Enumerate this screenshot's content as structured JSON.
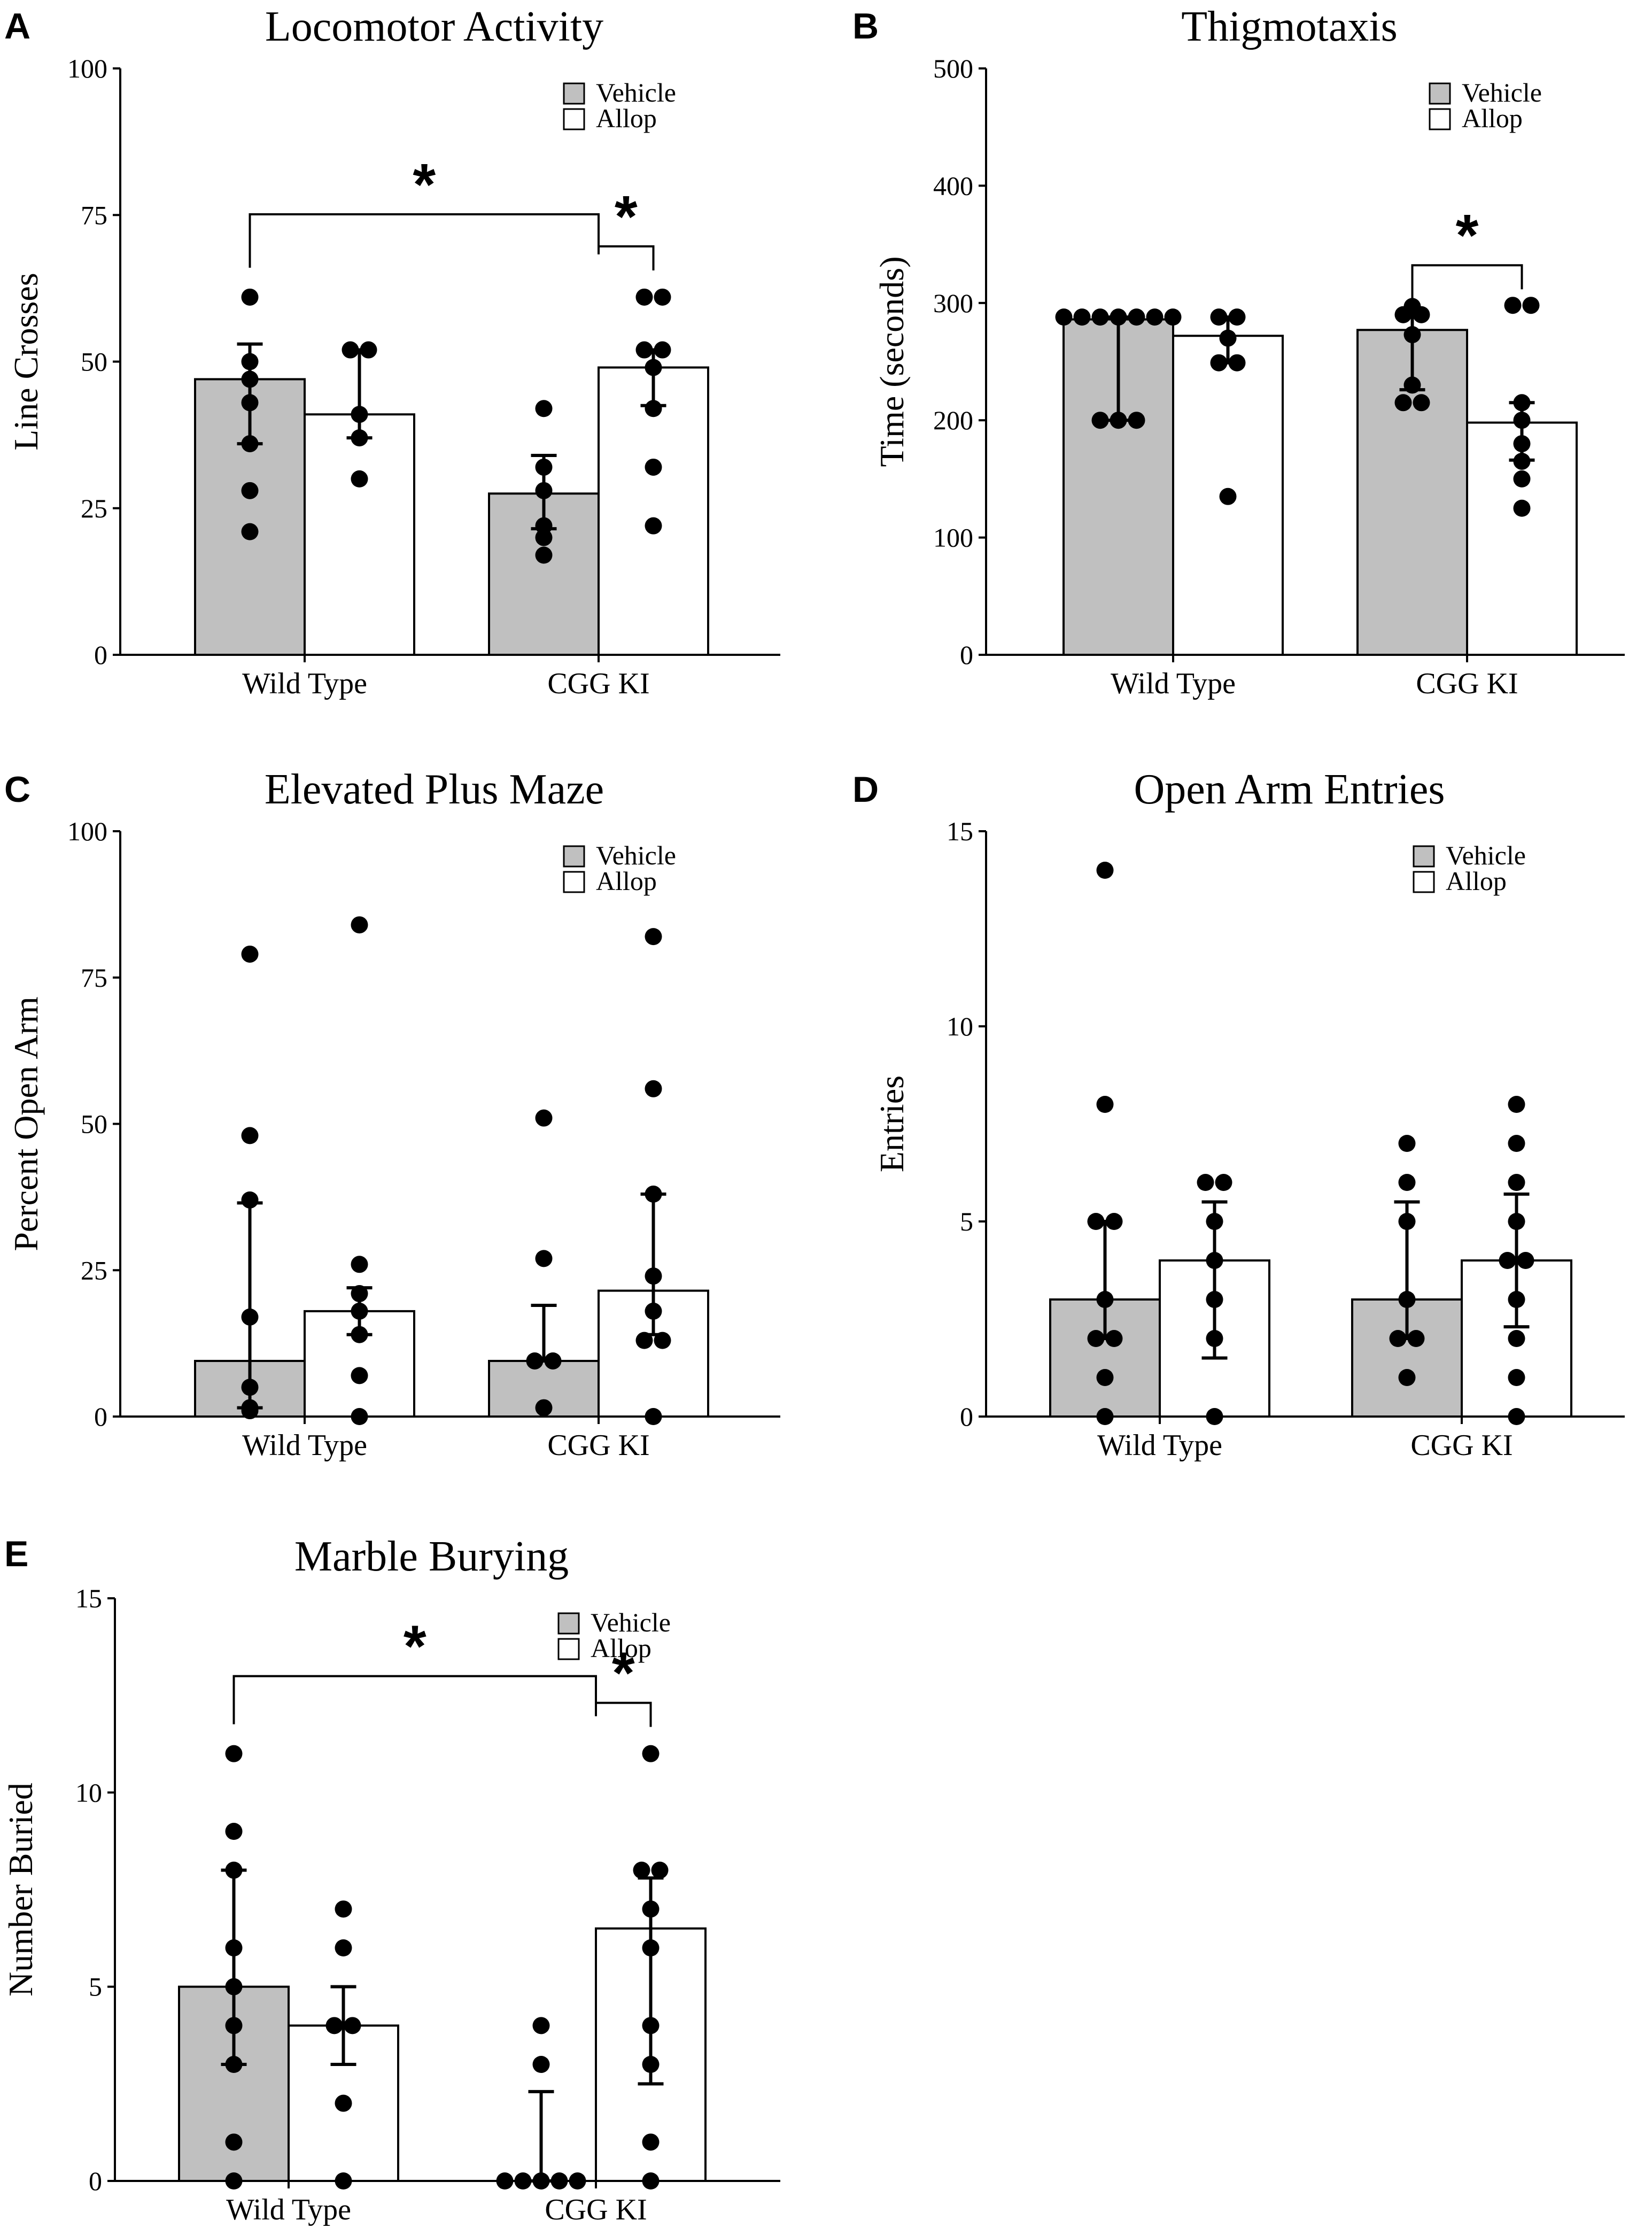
{
  "colors": {
    "vehicle": "#c0c0c0",
    "allop": "#ffffff",
    "ink": "#000000"
  },
  "chart_data": [
    {
      "panel": "A",
      "type": "bar",
      "title": "Locomotor Activity",
      "ylabel": "Line Crosses",
      "xlabel": "",
      "ylim": [
        0,
        100
      ],
      "yticks": [
        0,
        25,
        50,
        75,
        100
      ],
      "categories": [
        "Wild Type",
        "CGG KI"
      ],
      "legend": [
        "Vehicle",
        "Allop"
      ],
      "series": [
        {
          "name": "Vehicle",
          "values": [
            47,
            27.5
          ],
          "err_low": [
            36,
            21.5
          ],
          "err_high": [
            53,
            34
          ],
          "points": [
            [
              61,
              50,
              47,
              43,
              36,
              28,
              21
            ],
            [
              42,
              32,
              28,
              22,
              20,
              17
            ]
          ]
        },
        {
          "name": "Allop",
          "values": [
            41,
            49
          ],
          "err_low": [
            37,
            42.5
          ],
          "err_high": [
            52,
            52
          ],
          "points": [
            [
              52,
              52,
              41,
              37,
              30
            ],
            [
              61,
              61,
              52,
              52,
              49,
              42,
              32,
              22
            ]
          ]
        }
      ],
      "significance": [
        {
          "from": [
            0,
            0
          ],
          "to": [
            1,
            0
          ],
          "label": "*"
        },
        {
          "from": [
            1,
            0
          ],
          "to": [
            1,
            1
          ],
          "label": "*"
        }
      ]
    },
    {
      "panel": "B",
      "type": "bar",
      "title": "Thigmotaxis",
      "ylabel": "Time (seconds)",
      "xlabel": "",
      "ylim": [
        0,
        500
      ],
      "yticks": [
        0,
        100,
        200,
        300,
        400,
        500
      ],
      "categories": [
        "Wild Type",
        "CGG KI"
      ],
      "legend": [
        "Vehicle",
        "Allop"
      ],
      "series": [
        {
          "name": "Vehicle",
          "values": [
            286,
            277
          ],
          "err_low": [
            200,
            226
          ],
          "err_high": [
            288,
            290
          ],
          "points": [
            [
              288,
              288,
              288,
              288,
              288,
              288,
              288,
              200,
              200,
              200
            ],
            [
              297,
              290,
              290,
              273,
              230,
              215,
              215
            ]
          ]
        },
        {
          "name": "Allop",
          "values": [
            272,
            198
          ],
          "err_low": [
            249,
            166
          ],
          "err_high": [
            288,
            215
          ],
          "points": [
            [
              288,
              288,
              270,
              249,
              249,
              135
            ],
            [
              298,
              298,
              215,
              200,
              180,
              165,
              150,
              125
            ]
          ]
        }
      ],
      "significance": [
        {
          "from": [
            1,
            0
          ],
          "to": [
            1,
            1
          ],
          "label": "*"
        }
      ]
    },
    {
      "panel": "C",
      "type": "bar",
      "title": "Elevated Plus Maze",
      "ylabel": "Percent Open Arm",
      "xlabel": "",
      "ylim": [
        0,
        100
      ],
      "yticks": [
        0,
        25,
        50,
        75,
        100
      ],
      "categories": [
        "Wild Type",
        "CGG KI"
      ],
      "legend": [
        "Vehicle",
        "Allop"
      ],
      "series": [
        {
          "name": "Vehicle",
          "values": [
            9.5,
            9.5
          ],
          "err_low": [
            1.5,
            9.5
          ],
          "err_high": [
            36.5,
            19
          ],
          "points": [
            [
              79,
              48,
              37,
              17,
              5,
              1.5,
              1
            ],
            [
              51,
              27,
              9.5,
              9.5,
              1.5
            ]
          ]
        },
        {
          "name": "Allop",
          "values": [
            18,
            21.5
          ],
          "err_low": [
            14,
            14
          ],
          "err_high": [
            22,
            38
          ],
          "points": [
            [
              84,
              26,
              21,
              18,
              14,
              7,
              0
            ],
            [
              82,
              56,
              38,
              24,
              18,
              13,
              13,
              0
            ]
          ]
        }
      ],
      "significance": []
    },
    {
      "panel": "D",
      "type": "bar",
      "title": "Open Arm Entries",
      "ylabel": "Entries",
      "xlabel": "",
      "ylim": [
        0,
        15
      ],
      "yticks": [
        0,
        5,
        10,
        15
      ],
      "categories": [
        "Wild Type",
        "CGG KI"
      ],
      "legend": [
        "Vehicle",
        "Allop"
      ],
      "series": [
        {
          "name": "Vehicle",
          "values": [
            3,
            3
          ],
          "err_low": [
            2,
            2
          ],
          "err_high": [
            5,
            5.5
          ],
          "points": [
            [
              14,
              8,
              5,
              5,
              3,
              2,
              2,
              1,
              0
            ],
            [
              7,
              6,
              5,
              3,
              2,
              2,
              1
            ]
          ]
        },
        {
          "name": "Allop",
          "values": [
            4,
            4
          ],
          "err_low": [
            1.5,
            2.3
          ],
          "err_high": [
            5.5,
            5.7
          ],
          "points": [
            [
              6,
              6,
              5,
              4,
              3,
              2,
              0
            ],
            [
              8,
              7,
              6,
              5,
              4,
              4,
              3,
              2,
              1,
              0
            ]
          ]
        }
      ],
      "significance": []
    },
    {
      "panel": "E",
      "type": "bar",
      "title": "Marble Burying",
      "ylabel": "Number Buried",
      "xlabel": "",
      "ylim": [
        0,
        15
      ],
      "yticks": [
        0,
        5,
        10,
        15
      ],
      "categories": [
        "Wild Type",
        "CGG KI"
      ],
      "legend": [
        "Vehicle",
        "Allop"
      ],
      "series": [
        {
          "name": "Vehicle",
          "values": [
            5,
            0
          ],
          "err_low": [
            3,
            0
          ],
          "err_high": [
            8,
            2.3
          ],
          "points": [
            [
              11,
              9,
              8,
              6,
              5,
              4,
              3,
              1,
              0
            ],
            [
              4,
              3,
              0,
              0,
              0,
              0,
              0
            ]
          ]
        },
        {
          "name": "Allop",
          "values": [
            4,
            6.5
          ],
          "err_low": [
            3,
            2.5
          ],
          "err_high": [
            5,
            7.8
          ],
          "points": [
            [
              7,
              6,
              4,
              4,
              2,
              0
            ],
            [
              11,
              8,
              8,
              7,
              6,
              4,
              3,
              1,
              0
            ]
          ]
        }
      ],
      "significance": [
        {
          "from": [
            0,
            0
          ],
          "to": [
            1,
            0
          ],
          "label": "*"
        },
        {
          "from": [
            1,
            0
          ],
          "to": [
            1,
            1
          ],
          "label": "*"
        }
      ]
    }
  ]
}
